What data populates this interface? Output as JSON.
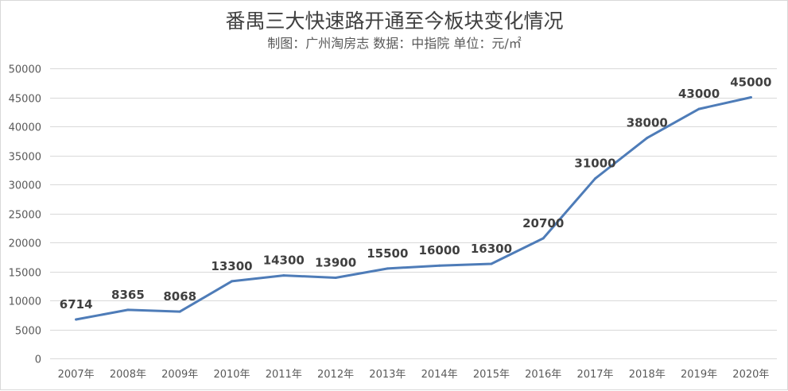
{
  "chart_data": {
    "type": "line",
    "title": "番禺三大快速路开通至今板块变化情况",
    "subtitle": "制图：广州淘房志 数据：中指院 单位：元/㎡",
    "categories": [
      "2007年",
      "2008年",
      "2009年",
      "2010年",
      "2011年",
      "2012年",
      "2013年",
      "2014年",
      "2015年",
      "2016年",
      "2017年",
      "2018年",
      "2019年",
      "2020年"
    ],
    "series": [
      {
        "values": [
          6714,
          8365,
          8068,
          13300,
          14300,
          13900,
          15500,
          16000,
          16300,
          20700,
          31000,
          38000,
          43000,
          45000
        ]
      }
    ],
    "ylim": [
      0,
      50000
    ],
    "yticks": [
      0,
      5000,
      10000,
      15000,
      20000,
      25000,
      30000,
      35000,
      40000,
      45000,
      50000
    ],
    "grid": true,
    "legend": "none",
    "line_color": "#4e7cb8"
  }
}
